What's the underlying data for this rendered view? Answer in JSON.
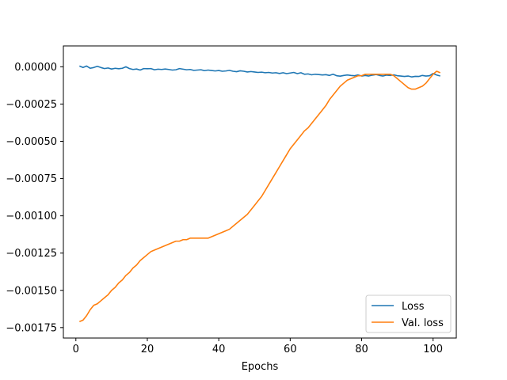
{
  "chart_data": {
    "type": "line",
    "title": "",
    "xlabel": "Epochs",
    "ylabel": "",
    "xlim": [
      -3.5,
      106.5
    ],
    "ylim": [
      -0.00182,
      0.00014
    ],
    "xticks": [
      0,
      20,
      40,
      60,
      80,
      100
    ],
    "yticks": [
      0.0,
      -0.00025,
      -0.0005,
      -0.00075,
      -0.001,
      -0.00125,
      -0.0015,
      -0.00175
    ],
    "xtick_labels": [
      "0",
      "20",
      "40",
      "60",
      "80",
      "100"
    ],
    "ytick_labels": [
      "0.00000",
      "−0.00025",
      "−0.00050",
      "−0.00075",
      "−0.00100",
      "−0.00125",
      "−0.00150",
      "−0.00175"
    ],
    "grid": false,
    "legend_position": "lower-right",
    "series": [
      {
        "name": "Loss",
        "color": "#1f77b4",
        "x": [
          1,
          2,
          3,
          4,
          5,
          6,
          7,
          8,
          9,
          10,
          11,
          12,
          13,
          14,
          15,
          16,
          17,
          18,
          19,
          20,
          21,
          22,
          23,
          24,
          25,
          26,
          27,
          28,
          29,
          30,
          31,
          32,
          33,
          34,
          35,
          36,
          37,
          38,
          39,
          40,
          41,
          42,
          43,
          44,
          45,
          46,
          47,
          48,
          49,
          50,
          51,
          52,
          53,
          54,
          55,
          56,
          57,
          58,
          59,
          60,
          61,
          62,
          63,
          64,
          65,
          66,
          67,
          68,
          69,
          70,
          71,
          72,
          73,
          74,
          75,
          76,
          77,
          78,
          79,
          80,
          81,
          82,
          83,
          84,
          85,
          86,
          87,
          88,
          89,
          90,
          91,
          92,
          93,
          94,
          95,
          96,
          97,
          98,
          99,
          100,
          101,
          102
        ],
        "values": [
          5e-06,
          -5e-06,
          5e-06,
          -1e-05,
          -5e-06,
          3e-06,
          -5e-06,
          -1.2e-05,
          -8e-06,
          -1.5e-05,
          -1e-05,
          -1.3e-05,
          -1e-05,
          0.0,
          -1.2e-05,
          -1.8e-05,
          -1.5e-05,
          -2.2e-05,
          -1.2e-05,
          -1.3e-05,
          -1.2e-05,
          -2e-05,
          -1.6e-05,
          -1.8e-05,
          -1.5e-05,
          -1.8e-05,
          -2.2e-05,
          -2e-05,
          -1.2e-05,
          -1.6e-05,
          -2e-05,
          -1.8e-05,
          -2.4e-05,
          -2.2e-05,
          -2e-05,
          -2.6e-05,
          -2.2e-05,
          -2.5e-05,
          -2.8e-05,
          -2.5e-05,
          -3e-05,
          -2.8e-05,
          -2.4e-05,
          -3e-05,
          -3.3e-05,
          -2.7e-05,
          -3e-05,
          -3.5e-05,
          -3.2e-05,
          -3.5e-05,
          -3.8e-05,
          -3.6e-05,
          -4e-05,
          -3.8e-05,
          -4.2e-05,
          -4e-05,
          -4.5e-05,
          -4e-05,
          -4.6e-05,
          -4.2e-05,
          -3.8e-05,
          -4.6e-05,
          -4e-05,
          -5e-05,
          -4.8e-05,
          -5.4e-05,
          -5e-05,
          -5.2e-05,
          -5.5e-05,
          -5.3e-05,
          -5.8e-05,
          -5e-05,
          -6e-05,
          -6.3e-05,
          -5.8e-05,
          -5.5e-05,
          -5.8e-05,
          -6e-05,
          -5.5e-05,
          -6.2e-05,
          -5.8e-05,
          -6.2e-05,
          -5.6e-05,
          -5.2e-05,
          -5.8e-05,
          -6.2e-05,
          -5.6e-05,
          -5.8e-05,
          -5.4e-05,
          -6e-05,
          -6.2e-05,
          -6.5e-05,
          -6.2e-05,
          -6.8e-05,
          -6.4e-05,
          -6.5e-05,
          -5.8e-05,
          -6.2e-05,
          -6e-05,
          -4.5e-05,
          -5.5e-05,
          -6.2e-05
        ]
      },
      {
        "name": "Val. loss",
        "color": "#ff7f0e",
        "x": [
          1,
          2,
          3,
          4,
          5,
          6,
          7,
          8,
          9,
          10,
          11,
          12,
          13,
          14,
          15,
          16,
          17,
          18,
          19,
          20,
          21,
          22,
          23,
          24,
          25,
          26,
          27,
          28,
          29,
          30,
          31,
          32,
          33,
          34,
          35,
          36,
          37,
          38,
          39,
          40,
          41,
          42,
          43,
          44,
          45,
          46,
          47,
          48,
          49,
          50,
          51,
          52,
          53,
          54,
          55,
          56,
          57,
          58,
          59,
          60,
          61,
          62,
          63,
          64,
          65,
          66,
          67,
          68,
          69,
          70,
          71,
          72,
          73,
          74,
          75,
          76,
          77,
          78,
          79,
          80,
          81,
          82,
          83,
          84,
          85,
          86,
          87,
          88,
          89,
          90,
          91,
          92,
          93,
          94,
          95,
          96,
          97,
          98,
          99,
          100,
          101,
          102
        ],
        "values": [
          -0.00171,
          -0.0017,
          -0.00167,
          -0.00163,
          -0.0016,
          -0.00159,
          -0.00157,
          -0.00155,
          -0.00153,
          -0.0015,
          -0.00148,
          -0.00145,
          -0.00143,
          -0.0014,
          -0.00138,
          -0.00135,
          -0.00133,
          -0.0013,
          -0.00128,
          -0.00126,
          -0.00124,
          -0.00123,
          -0.00122,
          -0.00121,
          -0.0012,
          -0.00119,
          -0.00118,
          -0.00117,
          -0.00117,
          -0.00116,
          -0.00116,
          -0.00115,
          -0.00115,
          -0.00115,
          -0.00115,
          -0.00115,
          -0.00115,
          -0.00114,
          -0.00113,
          -0.00112,
          -0.00111,
          -0.0011,
          -0.00109,
          -0.00107,
          -0.00105,
          -0.00103,
          -0.00101,
          -0.00099,
          -0.00096,
          -0.00093,
          -0.0009,
          -0.00087,
          -0.00083,
          -0.00079,
          -0.00075,
          -0.00071,
          -0.00067,
          -0.00063,
          -0.00059,
          -0.00055,
          -0.00052,
          -0.00049,
          -0.00046,
          -0.00043,
          -0.00041,
          -0.00038,
          -0.00035,
          -0.00032,
          -0.00029,
          -0.00026,
          -0.00022,
          -0.00019,
          -0.00016,
          -0.00013,
          -0.00011,
          -9e-05,
          -8e-05,
          -7e-05,
          -6e-05,
          -6e-05,
          -5e-05,
          -5e-05,
          -5e-05,
          -5e-05,
          -5e-05,
          -5e-05,
          -5e-05,
          -5e-05,
          -6e-05,
          -8e-05,
          -0.0001,
          -0.00012,
          -0.00014,
          -0.00015,
          -0.00015,
          -0.00014,
          -0.00013,
          -0.00011,
          -8e-05,
          -5e-05,
          -3e-05,
          -4e-05
        ]
      }
    ]
  }
}
